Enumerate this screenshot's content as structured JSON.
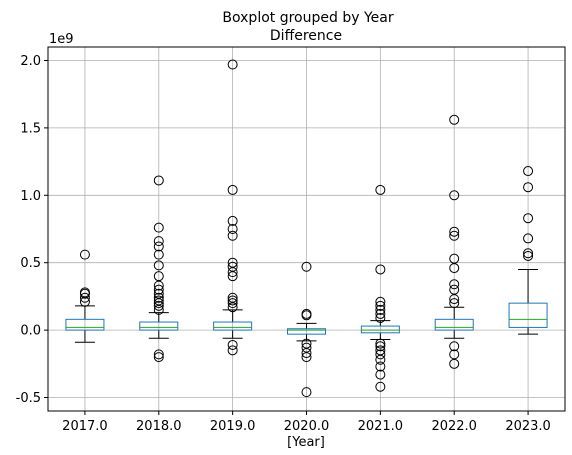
{
  "chart_data": {
    "type": "boxplot",
    "suptitle": "Boxplot grouped by Year",
    "title": "Difference",
    "xlabel": "[Year]",
    "ylabel": "",
    "y_scale_label": "1e9",
    "y_unit_multiplier": 1000000000,
    "ylim": [
      -0.6,
      2.1
    ],
    "y_ticks": [
      -0.5,
      0.0,
      0.5,
      1.0,
      1.5,
      2.0
    ],
    "y_tick_labels": [
      "-0.5",
      "0.0",
      "0.5",
      "1.0",
      "1.5",
      "2.0"
    ],
    "grid": true,
    "categories": [
      "2017.0",
      "2018.0",
      "2019.0",
      "2020.0",
      "2021.0",
      "2022.0",
      "2023.0"
    ],
    "boxes": [
      {
        "category": "2017.0",
        "whisker_low": -0.09,
        "q1": 0.0,
        "median": 0.02,
        "q3": 0.08,
        "whisker_high": 0.18,
        "outliers": [
          0.21,
          0.24,
          0.27,
          0.28,
          0.56
        ]
      },
      {
        "category": "2018.0",
        "whisker_low": -0.06,
        "q1": 0.0,
        "median": 0.02,
        "q3": 0.06,
        "whisker_high": 0.13,
        "outliers": [
          -0.2,
          -0.18,
          0.15,
          0.18,
          0.2,
          0.22,
          0.24,
          0.27,
          0.3,
          0.33,
          0.4,
          0.48,
          0.56,
          0.62,
          0.66,
          0.76,
          1.11
        ]
      },
      {
        "category": "2019.0",
        "whisker_low": -0.06,
        "q1": 0.0,
        "median": 0.02,
        "q3": 0.06,
        "whisker_high": 0.15,
        "outliers": [
          -0.15,
          -0.11,
          0.17,
          0.2,
          0.22,
          0.24,
          0.4,
          0.43,
          0.47,
          0.5,
          0.7,
          0.75,
          0.81,
          1.04,
          1.97
        ]
      },
      {
        "category": "2020.0",
        "whisker_low": -0.08,
        "q1": -0.03,
        "median": 0.0,
        "q3": 0.01,
        "whisker_high": 0.05,
        "outliers": [
          -0.46,
          -0.2,
          -0.17,
          -0.13,
          -0.1,
          0.11,
          0.12,
          0.47
        ]
      },
      {
        "category": "2021.0",
        "whisker_low": -0.07,
        "q1": -0.02,
        "median": 0.0,
        "q3": 0.03,
        "whisker_high": 0.07,
        "outliers": [
          -0.42,
          -0.33,
          -0.27,
          -0.22,
          -0.18,
          -0.15,
          -0.12,
          -0.1,
          0.09,
          0.12,
          0.15,
          0.18,
          0.21,
          0.45,
          1.04
        ]
      },
      {
        "category": "2022.0",
        "whisker_low": -0.06,
        "q1": 0.0,
        "median": 0.02,
        "q3": 0.08,
        "whisker_high": 0.17,
        "outliers": [
          -0.25,
          -0.18,
          -0.12,
          0.2,
          0.23,
          0.3,
          0.34,
          0.46,
          0.53,
          0.7,
          0.73,
          1.0,
          1.56
        ]
      },
      {
        "category": "2023.0",
        "whisker_low": -0.03,
        "q1": 0.02,
        "median": 0.08,
        "q3": 0.2,
        "whisker_high": 0.45,
        "outliers": [
          0.55,
          0.57,
          0.68,
          0.83,
          1.06,
          1.18
        ]
      }
    ]
  },
  "colors": {
    "box": "#1f77b4",
    "median": "#2ca02c",
    "whisker": "#000000",
    "grid": "#b0b0b0",
    "axes": "#000000"
  }
}
